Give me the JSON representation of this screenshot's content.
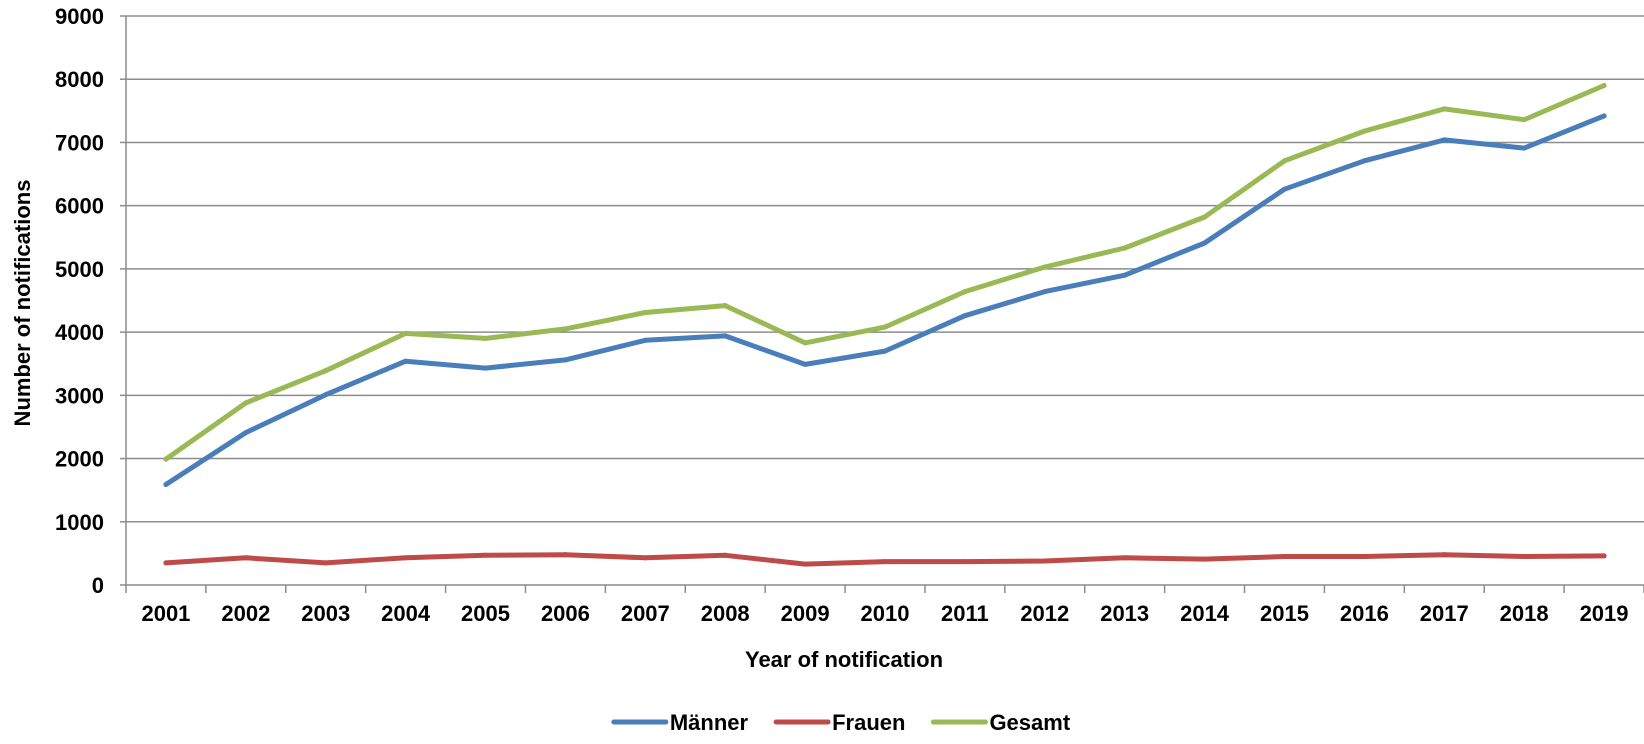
{
  "chart_data": {
    "type": "line",
    "title": "",
    "xlabel": "Year of notification",
    "ylabel": "Number of notifications",
    "ylim": [
      0,
      9000
    ],
    "yticks": [
      0,
      1000,
      2000,
      3000,
      4000,
      5000,
      6000,
      7000,
      8000,
      9000
    ],
    "grid": "horizontal",
    "legend_position": "bottom",
    "categories": [
      "2001",
      "2002",
      "2003",
      "2004",
      "2005",
      "2006",
      "2007",
      "2008",
      "2009",
      "2010",
      "2011",
      "2012",
      "2013",
      "2014",
      "2015",
      "2016",
      "2017",
      "2018",
      "2019"
    ],
    "series": [
      {
        "name": "Männer",
        "color": "#4A7EBB",
        "values": [
          1590,
          2410,
          3010,
          3540,
          3430,
          3560,
          3870,
          3940,
          3490,
          3700,
          4260,
          4640,
          4900,
          5410,
          6260,
          6710,
          7040,
          6910,
          7420
        ]
      },
      {
        "name": "Frauen",
        "color": "#BE4B48",
        "values": [
          350,
          430,
          350,
          430,
          470,
          480,
          430,
          470,
          330,
          370,
          370,
          380,
          430,
          410,
          450,
          450,
          480,
          450,
          460
        ]
      },
      {
        "name": "Gesamt",
        "color": "#98B954",
        "values": [
          1990,
          2880,
          3390,
          3980,
          3900,
          4050,
          4310,
          4420,
          3830,
          4080,
          4640,
          5030,
          5330,
          5820,
          6710,
          7180,
          7530,
          7360,
          7900
        ]
      }
    ]
  }
}
